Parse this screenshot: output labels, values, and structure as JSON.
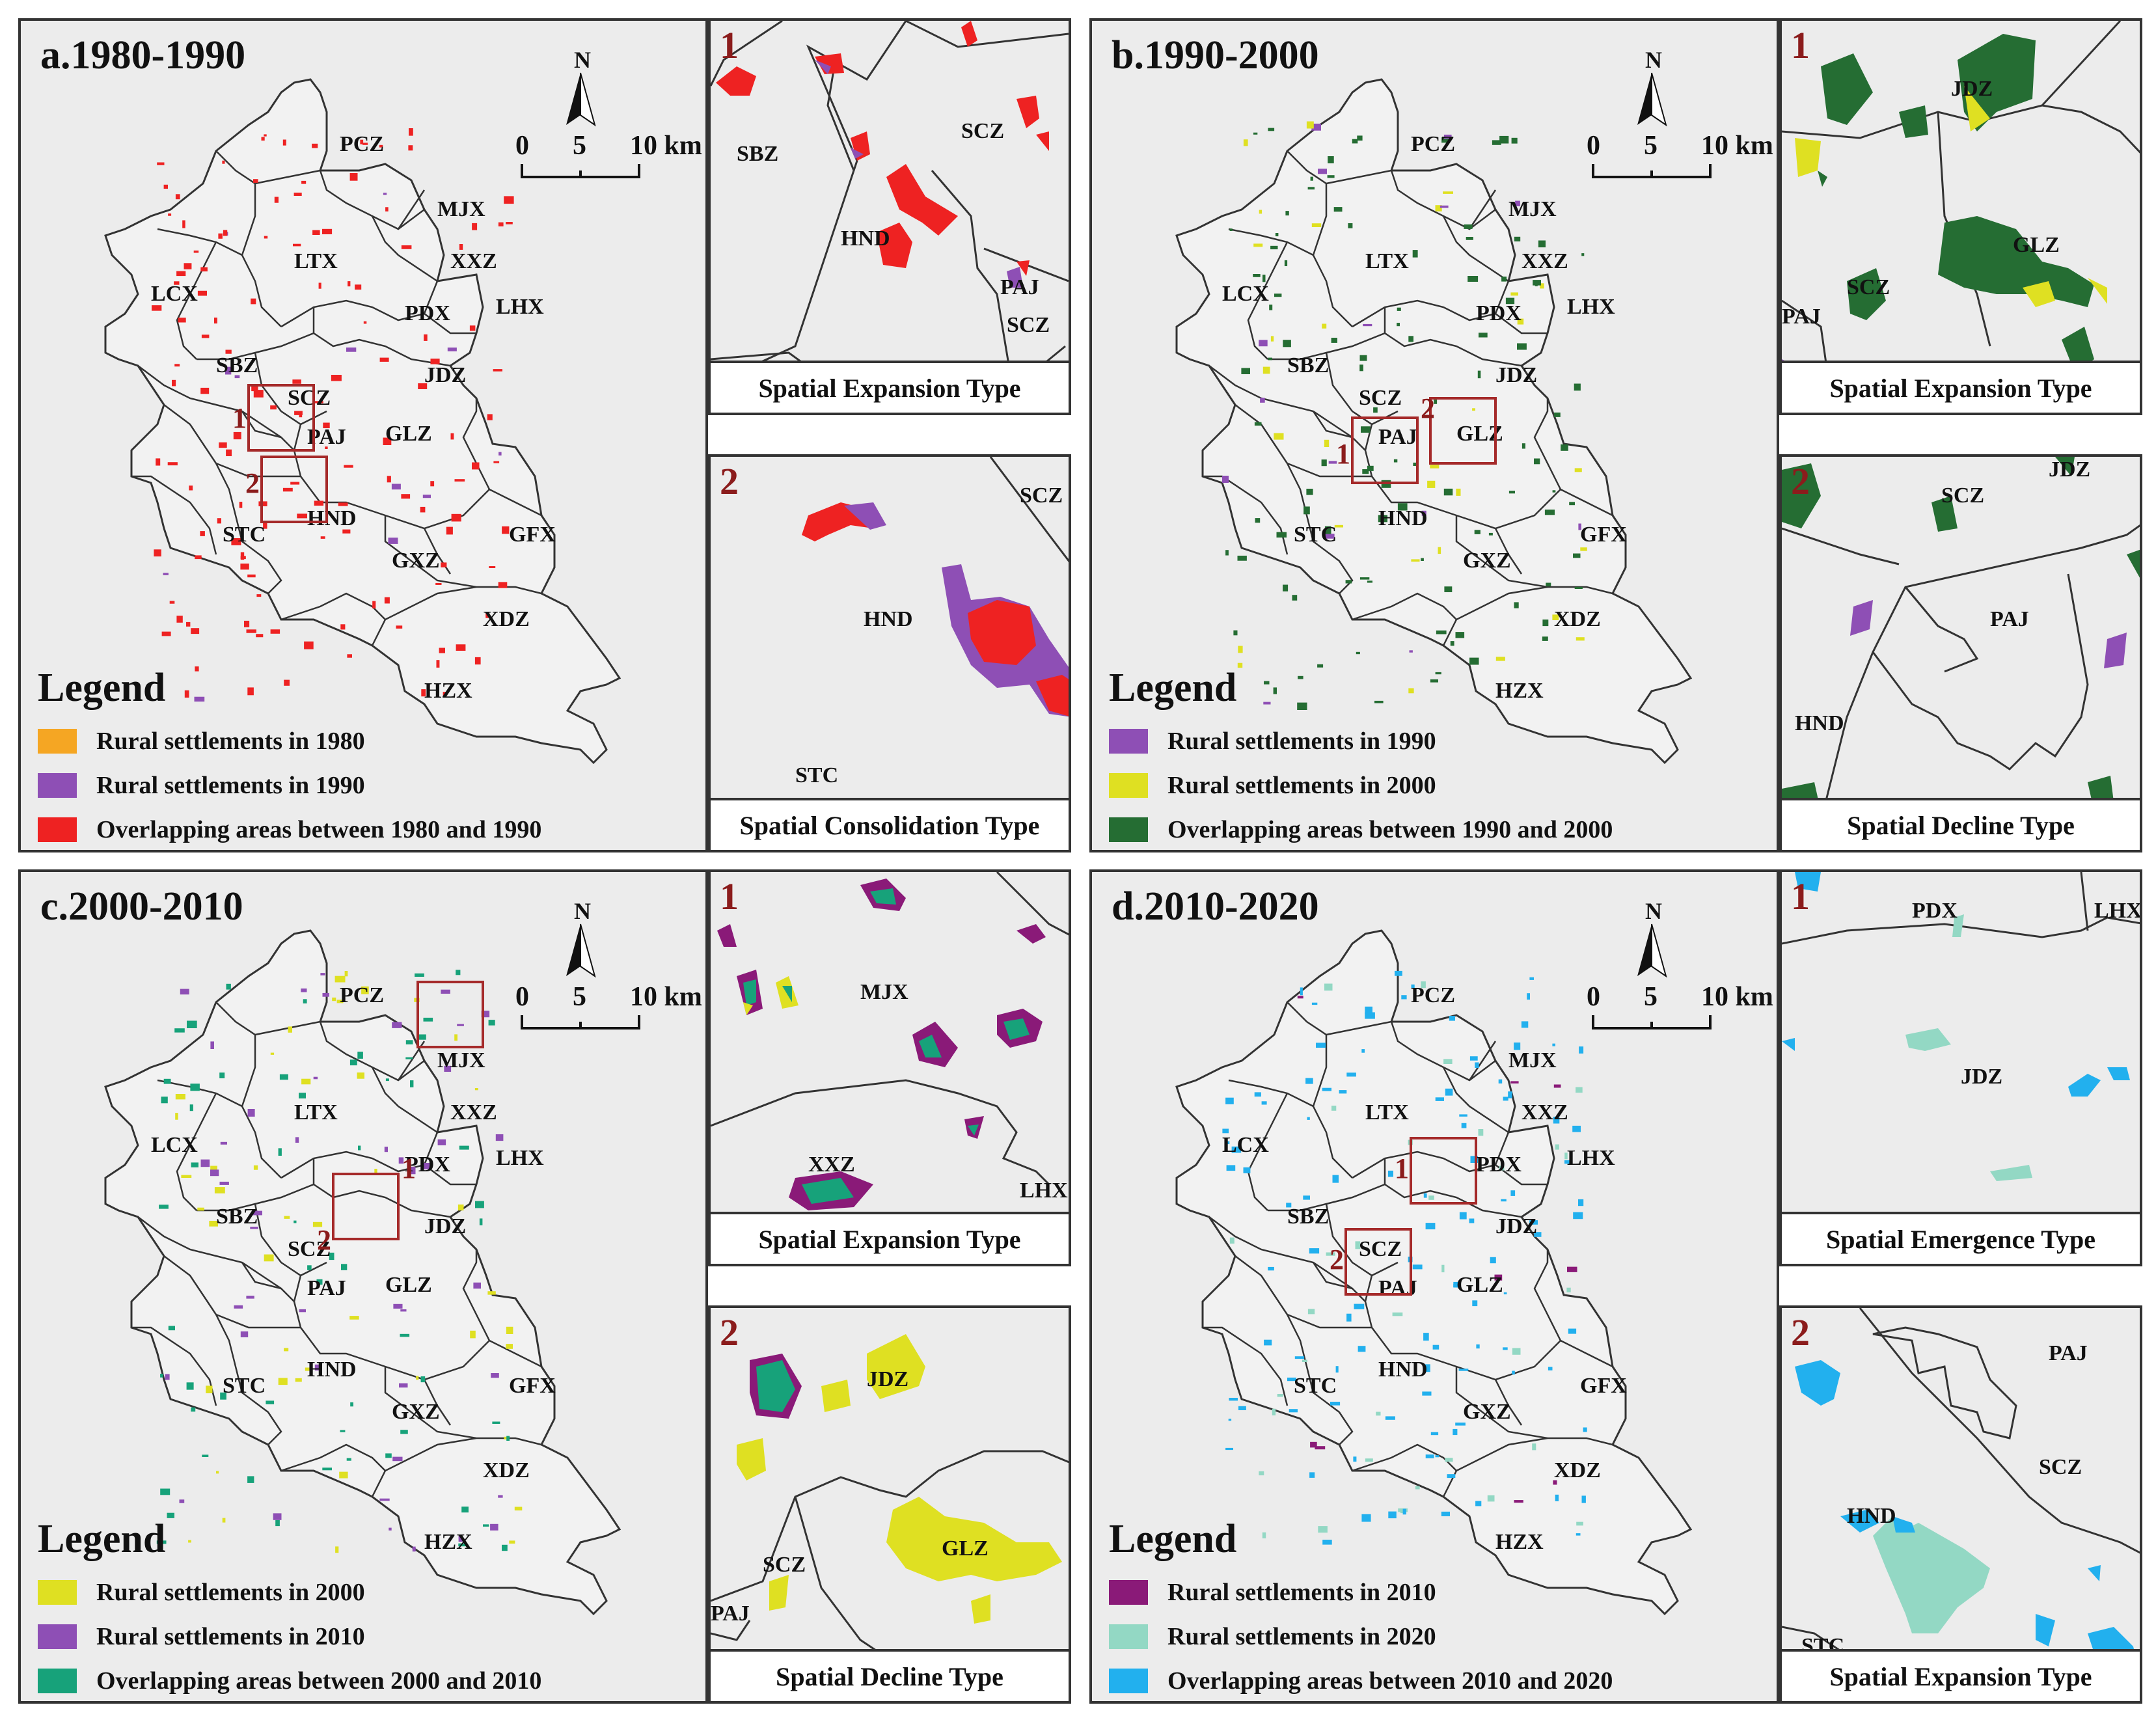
{
  "colors": {
    "boundary": "#333333",
    "land": "#ececec",
    "highlight_box": "#a52a2a",
    "inset_number": "#8b1c1c"
  },
  "scale": {
    "north": "N",
    "ticks": [
      "0",
      "5",
      "10 km"
    ]
  },
  "labels": [
    "PCZ",
    "MJX",
    "LTX",
    "XXZ",
    "LCX",
    "PDX",
    "LHX",
    "SBZ",
    "JDZ",
    "SCZ",
    "PAJ",
    "GLZ",
    "STC",
    "HND",
    "GFX",
    "GXZ",
    "XDZ",
    "HZX"
  ],
  "panels": [
    {
      "id": "a",
      "title": "a.1980-1990",
      "legend_title": "Legend",
      "legend": [
        {
          "label": "Rural settlements in 1980",
          "color": "#f5a623"
        },
        {
          "label": "Rural settlements in 1990",
          "color": "#8e4fb5"
        },
        {
          "label": "Overlapping areas between 1980 and 1990",
          "color": "#ee2222"
        }
      ],
      "box_numbers": [
        "1",
        "2"
      ],
      "inset1": {
        "number": "1",
        "caption": "Spatial Expansion Type",
        "labels": [
          "SBZ",
          "SCZ",
          "HND",
          "PAJ",
          "SCZ"
        ]
      },
      "inset2": {
        "number": "2",
        "caption": "Spatial Consolidation Type",
        "labels": [
          "SCZ",
          "HND",
          "STC"
        ]
      }
    },
    {
      "id": "b",
      "title": "b.1990-2000",
      "legend_title": "Legend",
      "legend": [
        {
          "label": "Rural settlements in 1990",
          "color": "#8e4fb5"
        },
        {
          "label": "Rural settlements in 2000",
          "color": "#dfe022"
        },
        {
          "label": "Overlapping areas between 1990 and 2000",
          "color": "#256d33"
        }
      ],
      "box_numbers": [
        "1",
        "2"
      ],
      "inset1": {
        "number": "1",
        "caption": "Spatial Expansion Type",
        "labels": [
          "JDZ",
          "GLZ",
          "SCZ",
          "PAJ"
        ]
      },
      "inset2": {
        "number": "2",
        "caption": "Spatial Decline Type",
        "labels": [
          "JDZ",
          "SCZ",
          "PAJ",
          "HND"
        ]
      }
    },
    {
      "id": "c",
      "title": "c.2000-2010",
      "legend_title": "Legend",
      "legend": [
        {
          "label": "Rural settlements in 2000",
          "color": "#dfe022"
        },
        {
          "label": "Rural settlements in 2010",
          "color": "#8e4fb5"
        },
        {
          "label": "Overlapping areas between 2000 and 2010",
          "color": "#17a27a"
        }
      ],
      "box_numbers": [
        "1",
        "2"
      ],
      "inset1": {
        "number": "1",
        "caption": "Spatial Expansion Type",
        "labels": [
          "MJX",
          "XXZ",
          "LHX"
        ]
      },
      "inset2": {
        "number": "2",
        "caption": "Spatial Decline Type",
        "labels": [
          "JDZ",
          "GLZ",
          "SCZ",
          "PAJ"
        ]
      }
    },
    {
      "id": "d",
      "title": "d.2010-2020",
      "legend_title": "Legend",
      "legend": [
        {
          "label": "Rural settlements in 2010",
          "color": "#8a1a78"
        },
        {
          "label": "Rural settlements in 2020",
          "color": "#93d8c4"
        },
        {
          "label": "Overlapping areas between 2010 and 2020",
          "color": "#22b0ee"
        }
      ],
      "box_numbers": [
        "1",
        "2"
      ],
      "inset1": {
        "number": "1",
        "caption": "Spatial Emergence Type",
        "labels": [
          "PDX",
          "LHX",
          "JDZ"
        ]
      },
      "inset2": {
        "number": "2",
        "caption": "Spatial Expansion Type",
        "labels": [
          "PAJ",
          "SCZ",
          "HND",
          "STC"
        ]
      }
    }
  ]
}
